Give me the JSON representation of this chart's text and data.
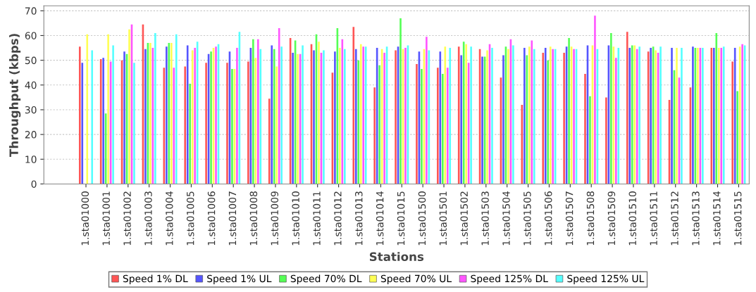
{
  "chart_data": {
    "type": "bar",
    "xlabel": "Stations",
    "ylabel": "Throughput (kbps)",
    "categories": [
      "1.sta01000",
      "1.sta01001",
      "1.sta01002",
      "1.sta01003",
      "1.sta01004",
      "1.sta01005",
      "1.sta01006",
      "1.sta01007",
      "1.sta01008",
      "1.sta01009",
      "1.sta01010",
      "1.sta01011",
      "1.sta01012",
      "1.sta01013",
      "1.sta01014",
      "1.sta01015",
      "1.sta01500",
      "1.sta01501",
      "1.sta01502",
      "1.sta01503",
      "1.sta01504",
      "1.sta01505",
      "1.sta01506",
      "1.sta01507",
      "1.sta01508",
      "1.sta01509",
      "1.sta01510",
      "1.sta01511",
      "1.sta01512",
      "1.sta01513",
      "1.sta01514",
      "1.sta01515"
    ],
    "series": [
      {
        "name": "Speed 1% DL",
        "color": "#ff5555",
        "values": [
          55.5,
          50.5,
          50,
          64.5,
          47,
          47.5,
          49,
          49,
          49.5,
          34.5,
          59,
          56.5,
          45,
          63.5,
          39,
          54,
          48.5,
          47,
          55.5,
          54.5,
          43,
          32,
          53,
          53,
          44.5,
          35,
          61.5,
          53.5,
          34,
          39,
          55,
          49.5
        ]
      },
      {
        "name": "Speed 1% UL",
        "color": "#5555ff",
        "values": [
          49,
          51,
          53.5,
          54.5,
          55.5,
          56,
          52.5,
          53.5,
          55,
          56,
          53,
          54,
          53.5,
          54.5,
          55,
          55.5,
          53.5,
          53.5,
          52,
          51.5,
          52,
          55,
          55,
          55.5,
          56,
          56,
          55,
          55,
          55,
          55.5,
          55,
          55
        ]
      },
      {
        "name": "Speed 70% DL",
        "color": "#55ff55",
        "values": [
          0,
          28.5,
          52.5,
          57,
          57,
          40.5,
          53.5,
          46.5,
          58.5,
          54.5,
          58,
          60.5,
          63,
          50,
          48,
          67,
          46.5,
          44.5,
          57.5,
          51.5,
          55.5,
          52,
          50,
          59,
          35.5,
          61,
          56,
          55.5,
          46,
          55,
          61,
          37.5
        ]
      },
      {
        "name": "Speed 70% UL",
        "color": "#ffff55",
        "values": [
          60.5,
          60.5,
          62.5,
          57,
          57,
          54,
          55,
          46.5,
          51,
          47.5,
          52.5,
          57.5,
          55,
          56.5,
          54.5,
          54.5,
          54.5,
          55.5,
          56.5,
          54,
          54.5,
          55.5,
          55.5,
          55.5,
          56,
          55.5,
          56,
          54,
          55,
          55,
          55,
          55.5
        ]
      },
      {
        "name": "Speed 125% DL",
        "color": "#ff55ff",
        "values": [
          0,
          49.5,
          64.5,
          55,
          47,
          55,
          55.5,
          55,
          58.5,
          63,
          52.5,
          53,
          58.5,
          55.5,
          53,
          55,
          59.5,
          47,
          49,
          56.5,
          58.5,
          58,
          54.5,
          54.5,
          68,
          51,
          54.5,
          53,
          43,
          55,
          55,
          56.5
        ]
      },
      {
        "name": "Speed 125% UL",
        "color": "#55ffff",
        "values": [
          54,
          56,
          49,
          61,
          60.5,
          57.5,
          56.5,
          61.5,
          54.5,
          55.5,
          56,
          54,
          54.5,
          55.5,
          55.5,
          56,
          54,
          55,
          55.5,
          55,
          56,
          54.5,
          54.5,
          54.5,
          54.5,
          55,
          55.5,
          55.5,
          55,
          55,
          55.5,
          56
        ]
      }
    ],
    "ylim": [
      0,
      72
    ],
    "yticks": [
      0,
      10,
      20,
      30,
      40,
      50,
      60,
      70
    ],
    "grid": "y",
    "legend": "bottom"
  }
}
